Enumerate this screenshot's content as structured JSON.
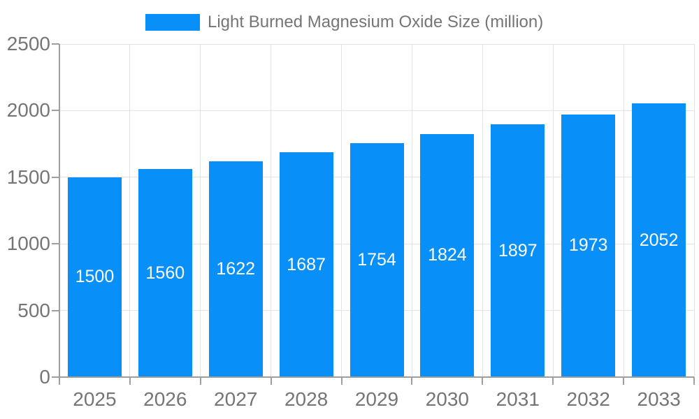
{
  "chart_data": {
    "type": "bar",
    "title": "Light Burned Magnesium Oxide Size (million)",
    "categories": [
      "2025",
      "2026",
      "2027",
      "2028",
      "2029",
      "2030",
      "2031",
      "2032",
      "2033"
    ],
    "series": [
      {
        "name": "Light Burned Magnesium Oxide Size (million)",
        "values": [
          1500,
          1560,
          1622,
          1687,
          1754,
          1824,
          1897,
          1973,
          2052
        ]
      }
    ],
    "xlabel": "",
    "ylabel": "",
    "ylim": [
      0,
      2500
    ],
    "yticks": [
      0,
      500,
      1000,
      1500,
      2000,
      2500
    ],
    "grid": true,
    "legend_position": "top",
    "value_labels_visible": true,
    "colors": {
      "bar": "#0890f8",
      "value_label": "#ffffff",
      "axis_text": "#757575",
      "axis_line": "#9e9e9e",
      "grid_line": "#e3e3e3",
      "background": "#ffffff"
    }
  }
}
